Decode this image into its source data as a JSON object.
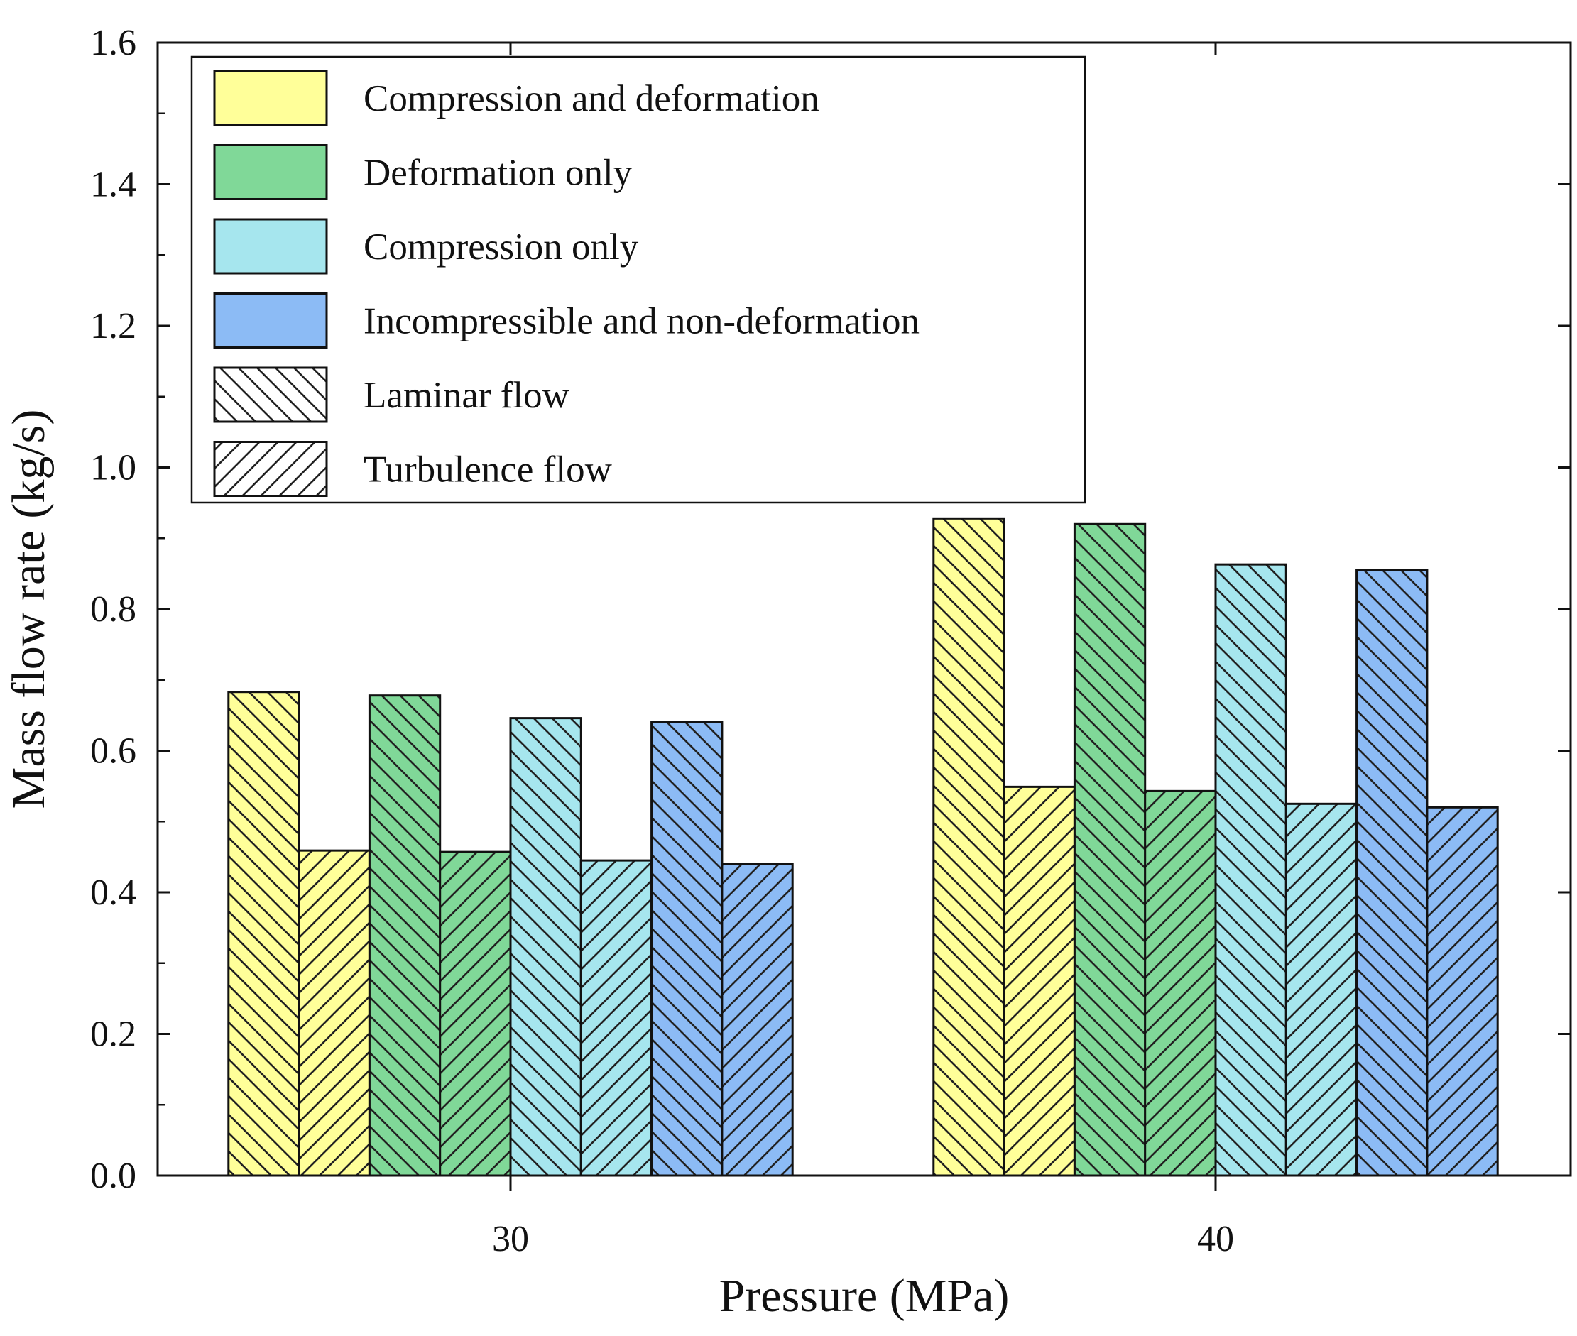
{
  "chart_data": {
    "type": "bar",
    "title": "",
    "xlabel": "Pressure (MPa)",
    "ylabel": "Mass flow rate (kg/s)",
    "ylim": [
      0.0,
      1.6
    ],
    "yticks": [
      "0.0",
      "0.2",
      "0.4",
      "0.6",
      "0.8",
      "1.0",
      "1.2",
      "1.4",
      "1.6"
    ],
    "categories": [
      "30",
      "40"
    ],
    "series": [
      {
        "name": "Compression and deformation, Laminar flow",
        "material": "Compression and deformation",
        "flow": "Laminar flow",
        "values": [
          0.683,
          0.928
        ]
      },
      {
        "name": "Compression and deformation, Turbulence flow",
        "material": "Compression and deformation",
        "flow": "Turbulence flow",
        "values": [
          0.459,
          0.549
        ]
      },
      {
        "name": "Deformation only, Laminar flow",
        "material": "Deformation only",
        "flow": "Laminar flow",
        "values": [
          0.678,
          0.92
        ]
      },
      {
        "name": "Deformation only, Turbulence flow",
        "material": "Deformation only",
        "flow": "Turbulence flow",
        "values": [
          0.457,
          0.543
        ]
      },
      {
        "name": "Compression only, Laminar flow",
        "material": "Compression only",
        "flow": "Laminar flow",
        "values": [
          0.646,
          0.863
        ]
      },
      {
        "name": "Compression only, Turbulence flow",
        "material": "Compression only",
        "flow": "Turbulence flow",
        "values": [
          0.445,
          0.525
        ]
      },
      {
        "name": "Incompressible and non-deformation, Laminar flow",
        "material": "Incompressible and non-deformation",
        "flow": "Laminar flow",
        "values": [
          0.641,
          0.855
        ]
      },
      {
        "name": "Incompressible and non-deformation, Turbulence flow",
        "material": "Incompressible and non-deformation",
        "flow": "Turbulence flow",
        "values": [
          0.44,
          0.52
        ]
      }
    ],
    "legend": {
      "placement": "top-left",
      "materials": [
        {
          "label": "Compression and deformation",
          "color": "#FFFF99"
        },
        {
          "label": "Deformation only",
          "color": "#80D898"
        },
        {
          "label": "Compression only",
          "color": "#A6E6EE"
        },
        {
          "label": "Incompressible and non-deformation",
          "color": "#8CBBF5"
        }
      ],
      "flows": [
        {
          "label": "Laminar flow",
          "pattern": "backslash-hatch"
        },
        {
          "label": "Turbulence flow",
          "pattern": "slash-hatch"
        }
      ]
    },
    "grid": false
  }
}
